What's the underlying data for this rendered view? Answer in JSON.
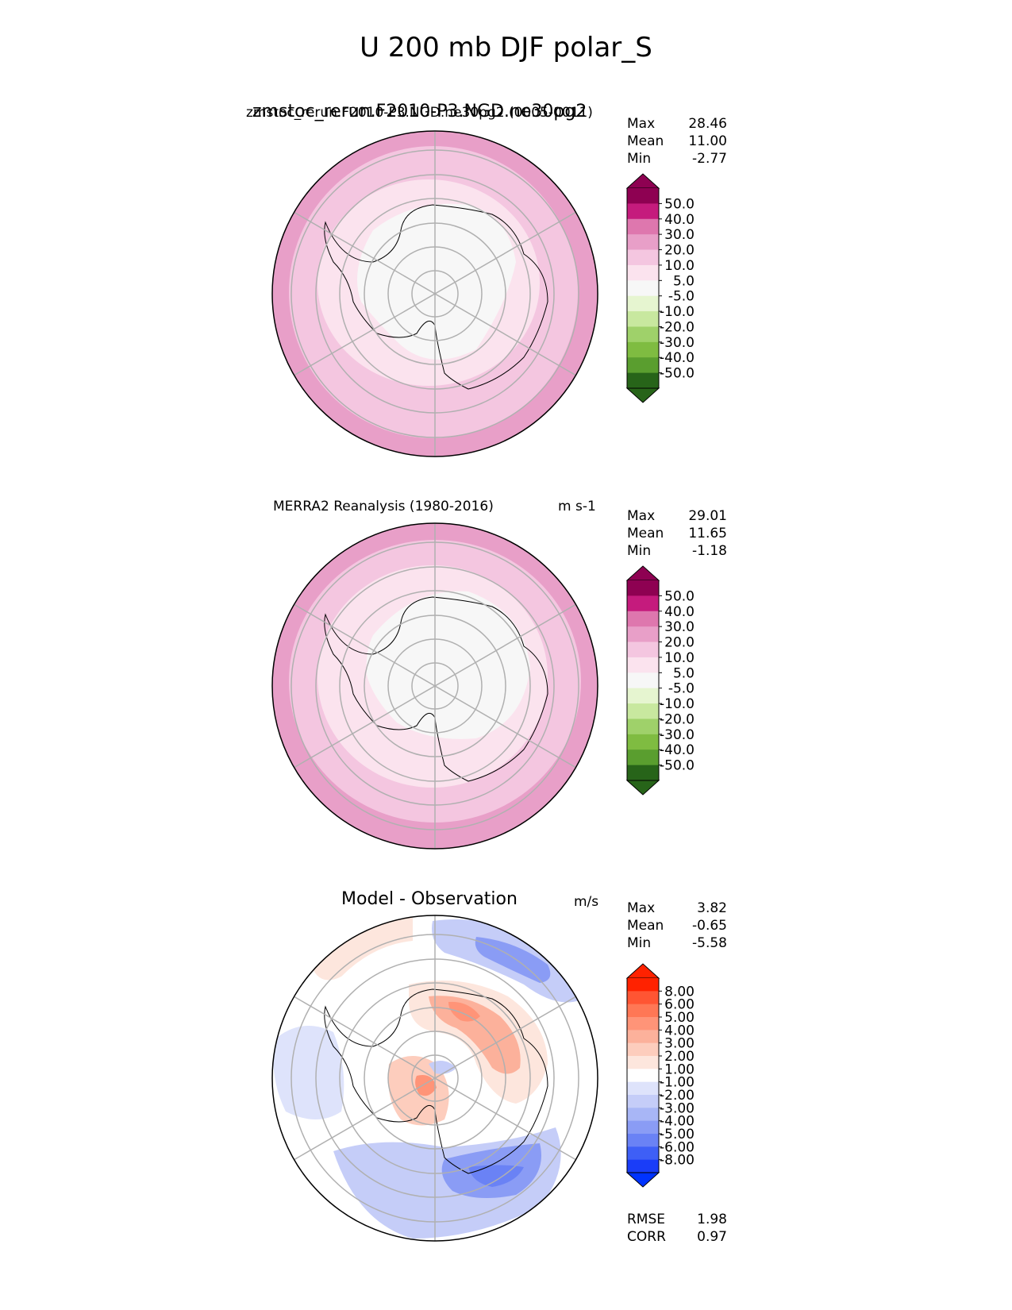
{
  "suptitle": "U 200 mb DJF polar_S",
  "panels": [
    {
      "title_main": "zmstoc_rerun.F2010-P3.NGD.ne30pg2",
      "title_overlap": "zmstoc_rerun.F2010-P3.NGD.ne30pg2 (0005-0011)",
      "units": "",
      "stats": [
        {
          "label": "Max",
          "value": "28.46"
        },
        {
          "label": "Mean",
          "value": "11.00"
        },
        {
          "label": "Min",
          "value": "-2.77"
        }
      ]
    },
    {
      "title_left": "MERRA2 Reanalysis (1980-2016)",
      "units": "m s-1",
      "stats": [
        {
          "label": "Max",
          "value": "29.01"
        },
        {
          "label": "Mean",
          "value": "11.65"
        },
        {
          "label": "Min",
          "value": "-1.18"
        }
      ]
    },
    {
      "title_main": "Model - Observation",
      "units": "m/s",
      "stats": [
        {
          "label": "Max",
          "value": "3.82"
        },
        {
          "label": "Mean",
          "value": "-0.65"
        },
        {
          "label": "Min",
          "value": "-5.58"
        }
      ],
      "metrics": [
        {
          "label": "RMSE",
          "value": "1.98"
        },
        {
          "label": "CORR",
          "value": "0.97"
        }
      ]
    }
  ],
  "colorbars": {
    "field": {
      "ticks": [
        "50.0",
        "40.0",
        "30.0",
        "20.0",
        "10.0",
        "5.0",
        "-5.0",
        "-10.0",
        "-20.0",
        "-30.0",
        "-40.0",
        "-50.0"
      ],
      "colors": [
        "#8e0152",
        "#c51b7d",
        "#de77ae",
        "#e89fc8",
        "#f4c6e0",
        "#fbe3ee",
        "#f7f7f7",
        "#e6f5d0",
        "#c8e89f",
        "#9fd16a",
        "#7fbc41",
        "#5a9e2f",
        "#276419"
      ],
      "top_color": "#8e0152",
      "bottom_color": "#276419"
    },
    "diff": {
      "ticks": [
        "8.00",
        "6.00",
        "5.00",
        "4.00",
        "3.00",
        "2.00",
        "1.00",
        "-1.00",
        "-2.00",
        "-3.00",
        "-4.00",
        "-5.00",
        "-6.00",
        "-8.00"
      ],
      "colors": [
        "#ff2200",
        "#ff5533",
        "#ff7755",
        "#ff9478",
        "#fcb19b",
        "#fdcdbd",
        "#fde6dd",
        "#ffffff",
        "#dee3fb",
        "#c5cdf8",
        "#a8b6f6",
        "#8a9cf5",
        "#6a82f5",
        "#3e5ff6",
        "#1a3df8"
      ],
      "top_color": "#ff2200",
      "bottom_color": "#0033ff"
    }
  },
  "chart_data": [
    {
      "type": "heatmap",
      "title": "zmstoc_rerun.F2010-P3.NGD.ne30pg2 (0005-0011)",
      "projection": "south polar stereographic",
      "variable": "U 200 mb DJF",
      "levels": [
        -50,
        -40,
        -30,
        -20,
        -10,
        -5,
        5,
        10,
        20,
        30,
        40,
        50
      ],
      "max": 28.46,
      "mean": 11.0,
      "min": -2.77
    },
    {
      "type": "heatmap",
      "title": "MERRA2 Reanalysis (1980-2016)",
      "units": "m s-1",
      "projection": "south polar stereographic",
      "levels": [
        -50,
        -40,
        -30,
        -20,
        -10,
        -5,
        5,
        10,
        20,
        30,
        40,
        50
      ],
      "max": 29.01,
      "mean": 11.65,
      "min": -1.18
    },
    {
      "type": "heatmap",
      "title": "Model - Observation",
      "units": "m/s",
      "projection": "south polar stereographic",
      "levels": [
        -8,
        -6,
        -5,
        -4,
        -3,
        -2,
        -1,
        1,
        2,
        3,
        4,
        5,
        6,
        8
      ],
      "max": 3.82,
      "mean": -0.65,
      "min": -5.58,
      "rmse": 1.98,
      "corr": 0.97
    }
  ]
}
